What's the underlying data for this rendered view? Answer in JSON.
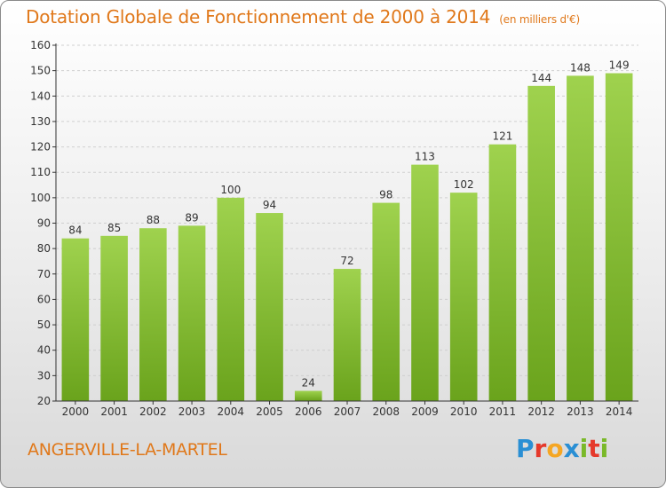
{
  "header": {
    "title": "Dotation Globale de Fonctionnement de 2000 à 2014",
    "subtitle": "(en milliers d'€)"
  },
  "footer": {
    "commune": "ANGERVILLE-LA-MARTEL",
    "logo_letters": [
      "P",
      "r",
      "o",
      "x",
      "i",
      "t",
      "i"
    ],
    "logo_colors": [
      "#2a8fd4",
      "#e5392b",
      "#f5a623",
      "#2a8fd4",
      "#7ab929",
      "#e5392b",
      "#7ab929"
    ]
  },
  "colors": {
    "bar_top": "#9fd24e",
    "bar_bottom": "#6aa31c",
    "axis": "#333333",
    "grid": "#cfcfcf",
    "accent": "#e0781a"
  },
  "chart_data": {
    "type": "bar",
    "categories": [
      "2000",
      "2001",
      "2002",
      "2003",
      "2004",
      "2005",
      "2006",
      "2007",
      "2008",
      "2009",
      "2010",
      "2011",
      "2012",
      "2013",
      "2014"
    ],
    "values": [
      84,
      85,
      88,
      89,
      100,
      94,
      24,
      72,
      98,
      113,
      102,
      121,
      144,
      148,
      149
    ],
    "ylim": [
      20,
      160
    ],
    "yticks": [
      20,
      30,
      40,
      50,
      60,
      70,
      80,
      90,
      100,
      110,
      120,
      130,
      140,
      150,
      160
    ],
    "grid": true,
    "data_labels": true
  }
}
